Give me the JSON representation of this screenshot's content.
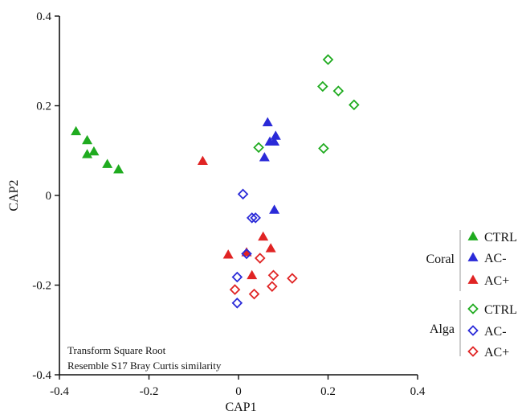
{
  "chart_data": {
    "type": "scatter",
    "xlabel": "CAP1",
    "ylabel": "CAP2",
    "xlim": [
      -0.4,
      0.4
    ],
    "ylim": [
      -0.4,
      0.4
    ],
    "xticks": [
      "-0.4",
      "-0.2",
      "0",
      "0.2",
      "0.4"
    ],
    "yticks": [
      "0.4",
      "0.2",
      "0",
      "-0.2",
      "-0.4"
    ],
    "xtick_values": [
      -0.4,
      -0.2,
      0,
      0.2,
      0.4
    ],
    "ytick_values": [
      0.4,
      0.2,
      0,
      -0.2,
      -0.4
    ],
    "grid": false,
    "annotation": [
      "Transform Square Root",
      "Resemble S17 Bray Curtis similarity"
    ],
    "legend_groups": [
      {
        "name": "Coral",
        "entries": [
          "CTRL",
          "AC-",
          "AC+"
        ]
      },
      {
        "name": "Alga",
        "entries": [
          "CTRL",
          "AC-",
          "AC+"
        ]
      }
    ],
    "series": [
      {
        "name": "CTRL",
        "group": "Coral",
        "marker": "filled-triangle",
        "color": "#1fab1f",
        "points": [
          [
            -0.363,
            0.143
          ],
          [
            -0.338,
            0.123
          ],
          [
            -0.338,
            0.092
          ],
          [
            -0.323,
            0.098
          ],
          [
            -0.293,
            0.07
          ],
          [
            -0.268,
            0.058
          ]
        ]
      },
      {
        "name": "AC-",
        "group": "Coral",
        "marker": "filled-triangle",
        "color": "#2a2ad8",
        "points": [
          [
            0.065,
            0.163
          ],
          [
            0.083,
            0.133
          ],
          [
            0.07,
            0.12
          ],
          [
            0.08,
            0.12
          ],
          [
            0.058,
            0.085
          ],
          [
            0.08,
            -0.032
          ]
        ]
      },
      {
        "name": "AC+",
        "group": "Coral",
        "marker": "filled-triangle",
        "color": "#e02424",
        "points": [
          [
            -0.08,
            0.077
          ],
          [
            0.055,
            -0.092
          ],
          [
            0.072,
            -0.118
          ],
          [
            -0.023,
            -0.132
          ],
          [
            0.018,
            -0.127
          ],
          [
            0.03,
            -0.178
          ]
        ]
      },
      {
        "name": "CTRL",
        "group": "Alga",
        "marker": "open-diamond",
        "color": "#1fab1f",
        "points": [
          [
            0.2,
            0.303
          ],
          [
            0.188,
            0.243
          ],
          [
            0.223,
            0.233
          ],
          [
            0.258,
            0.202
          ],
          [
            0.19,
            0.105
          ],
          [
            0.045,
            0.107
          ]
        ]
      },
      {
        "name": "AC-",
        "group": "Alga",
        "marker": "open-diamond",
        "color": "#2a2ad8",
        "points": [
          [
            0.01,
            0.003
          ],
          [
            0.03,
            -0.05
          ],
          [
            0.038,
            -0.05
          ],
          [
            0.018,
            -0.13
          ],
          [
            -0.003,
            -0.182
          ],
          [
            -0.003,
            -0.24
          ]
        ]
      },
      {
        "name": "AC+",
        "group": "Alga",
        "marker": "open-diamond",
        "color": "#e02424",
        "points": [
          [
            0.048,
            -0.14
          ],
          [
            0.078,
            -0.178
          ],
          [
            0.12,
            -0.185
          ],
          [
            0.075,
            -0.203
          ],
          [
            -0.008,
            -0.21
          ],
          [
            0.035,
            -0.22
          ]
        ]
      }
    ]
  }
}
